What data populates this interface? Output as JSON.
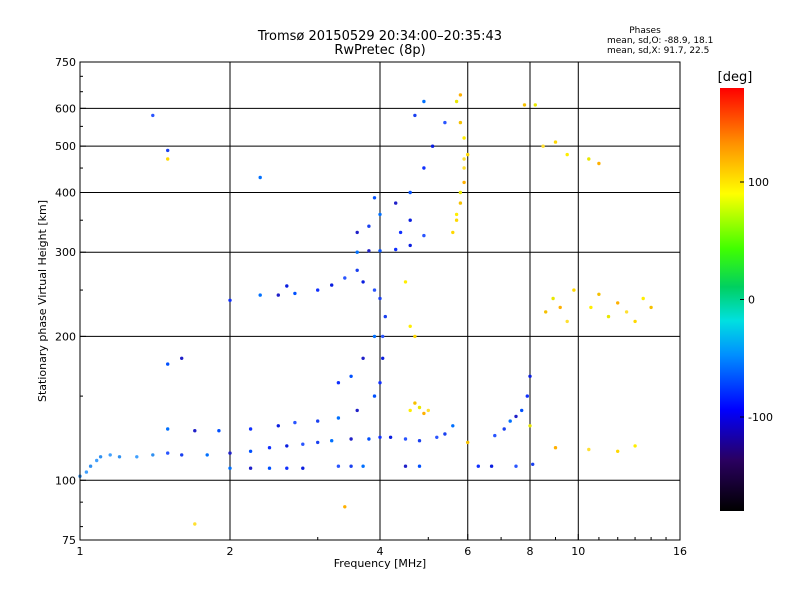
{
  "chart_data": {
    "type": "scatter",
    "title": "Tromsø 20150529 20:34:00–20:35:43",
    "subtitle": "RwPretec (8p)",
    "stats": {
      "heading": "Phases",
      "line1": "mean, sd,O: -88.9, 18.1",
      "line2": "mean, sd,X: 91.7, 22.5"
    },
    "xlabel": "Frequency [MHz]",
    "ylabel": "Stationary phase Virtual Height [km]",
    "x_scale": "log",
    "y_scale": "log",
    "xlim": [
      1,
      16
    ],
    "ylim": [
      75,
      750
    ],
    "xticks": [
      1,
      2,
      4,
      6,
      8,
      10,
      16
    ],
    "xtick_labels": [
      "1",
      "2",
      "4",
      "6",
      "8",
      "10",
      "16"
    ],
    "x_gridlines": [
      2,
      4,
      6,
      8,
      10
    ],
    "yticks": [
      75,
      100,
      200,
      300,
      400,
      500,
      600,
      750
    ],
    "ytick_labels": [
      "75",
      "100",
      "200",
      "300",
      "400",
      "500",
      "600",
      "750"
    ],
    "y_gridlines": [
      100,
      200,
      300,
      400,
      500,
      600
    ],
    "grid": true,
    "colorbar": {
      "label": "[deg]",
      "range": [
        -180,
        180
      ],
      "ticks": [
        100,
        0,
        -100
      ],
      "tick_labels": [
        "100",
        "0",
        "-100"
      ]
    },
    "series": [
      {
        "phase": "O",
        "color_note": "blue (~ -90 deg)",
        "points": [
          [
            1.0,
            102
          ],
          [
            1.03,
            104
          ],
          [
            1.05,
            107
          ],
          [
            1.08,
            110
          ],
          [
            1.1,
            112
          ],
          [
            1.15,
            113
          ],
          [
            1.2,
            112
          ],
          [
            1.3,
            112
          ],
          [
            1.4,
            113
          ],
          [
            1.5,
            114
          ],
          [
            1.6,
            113
          ],
          [
            1.8,
            113
          ],
          [
            2.0,
            114
          ],
          [
            2.2,
            115
          ],
          [
            2.4,
            117
          ],
          [
            2.6,
            118
          ],
          [
            2.8,
            119
          ],
          [
            3.0,
            120
          ],
          [
            3.2,
            121
          ],
          [
            3.5,
            122
          ],
          [
            3.8,
            122
          ],
          [
            4.0,
            123
          ],
          [
            4.2,
            123
          ],
          [
            4.5,
            122
          ],
          [
            4.8,
            121
          ],
          [
            2.0,
            106
          ],
          [
            2.2,
            106
          ],
          [
            2.4,
            106
          ],
          [
            2.6,
            106
          ],
          [
            2.8,
            106
          ],
          [
            3.3,
            107
          ],
          [
            3.5,
            107
          ],
          [
            3.7,
            107
          ],
          [
            4.5,
            107
          ],
          [
            4.8,
            107
          ],
          [
            6.3,
            107
          ],
          [
            6.7,
            107
          ],
          [
            7.5,
            107
          ],
          [
            8.1,
            108
          ],
          [
            1.5,
            128
          ],
          [
            1.7,
            127
          ],
          [
            1.9,
            127
          ],
          [
            2.2,
            128
          ],
          [
            2.5,
            130
          ],
          [
            2.7,
            132
          ],
          [
            3.0,
            133
          ],
          [
            3.3,
            135
          ],
          [
            3.6,
            140
          ],
          [
            3.9,
            150
          ],
          [
            4.0,
            160
          ],
          [
            4.05,
            180
          ],
          [
            4.05,
            200
          ],
          [
            4.1,
            220
          ],
          [
            3.9,
            200
          ],
          [
            3.7,
            180
          ],
          [
            3.5,
            165
          ],
          [
            3.3,
            160
          ],
          [
            3.7,
            260
          ],
          [
            3.9,
            250
          ],
          [
            4.0,
            240
          ],
          [
            2.3,
            244
          ],
          [
            2.5,
            244
          ],
          [
            2.7,
            246
          ],
          [
            3.0,
            250
          ],
          [
            3.2,
            256
          ],
          [
            3.4,
            265
          ],
          [
            3.6,
            275
          ],
          [
            3.6,
            300
          ],
          [
            3.8,
            302
          ],
          [
            4.0,
            302
          ],
          [
            4.3,
            304
          ],
          [
            4.6,
            310
          ],
          [
            4.9,
            325
          ],
          [
            3.8,
            340
          ],
          [
            4.0,
            360
          ],
          [
            4.3,
            380
          ],
          [
            4.6,
            400
          ],
          [
            4.9,
            450
          ],
          [
            5.1,
            500
          ],
          [
            5.4,
            560
          ],
          [
            4.7,
            580
          ],
          [
            4.9,
            620
          ],
          [
            3.6,
            330
          ],
          [
            3.9,
            390
          ],
          [
            4.4,
            330
          ],
          [
            4.6,
            350
          ],
          [
            6.8,
            124
          ],
          [
            7.1,
            128
          ],
          [
            7.3,
            133
          ],
          [
            7.5,
            136
          ],
          [
            7.7,
            140
          ],
          [
            7.9,
            150
          ],
          [
            8.0,
            165
          ],
          [
            5.2,
            123
          ],
          [
            5.4,
            125
          ],
          [
            5.6,
            130
          ],
          [
            1.6,
            180
          ],
          [
            1.5,
            175
          ],
          [
            2.0,
            238
          ],
          [
            2.6,
            255
          ],
          [
            1.4,
            580
          ],
          [
            1.5,
            490
          ],
          [
            2.3,
            430
          ]
        ]
      },
      {
        "phase": "X",
        "color_note": "yellow/orange (~ +90 deg)",
        "points": [
          [
            5.6,
            330
          ],
          [
            5.7,
            360
          ],
          [
            5.8,
            380
          ],
          [
            5.8,
            400
          ],
          [
            5.9,
            420
          ],
          [
            5.9,
            450
          ],
          [
            6.0,
            480
          ],
          [
            5.9,
            520
          ],
          [
            5.8,
            560
          ],
          [
            5.7,
            620
          ],
          [
            5.8,
            640
          ],
          [
            5.9,
            470
          ],
          [
            5.7,
            350
          ],
          [
            4.6,
            140
          ],
          [
            4.7,
            145
          ],
          [
            4.8,
            142
          ],
          [
            4.9,
            138
          ],
          [
            5.0,
            140
          ],
          [
            4.7,
            200
          ],
          [
            4.6,
            210
          ],
          [
            8.6,
            225
          ],
          [
            8.9,
            240
          ],
          [
            9.2,
            230
          ],
          [
            9.5,
            215
          ],
          [
            9.8,
            250
          ],
          [
            10.6,
            230
          ],
          [
            11.0,
            245
          ],
          [
            11.5,
            220
          ],
          [
            12.0,
            235
          ],
          [
            12.5,
            225
          ],
          [
            13.0,
            215
          ],
          [
            13.5,
            240
          ],
          [
            14.0,
            230
          ],
          [
            10.5,
            470
          ],
          [
            11.0,
            460
          ],
          [
            8.5,
            500
          ],
          [
            9.0,
            510
          ],
          [
            9.5,
            480
          ],
          [
            7.8,
            610
          ],
          [
            8.2,
            610
          ],
          [
            9.0,
            117
          ],
          [
            10.5,
            116
          ],
          [
            12.0,
            115
          ],
          [
            13.0,
            118
          ],
          [
            6.0,
            120
          ],
          [
            8.0,
            130
          ],
          [
            3.4,
            88
          ],
          [
            1.7,
            81
          ],
          [
            1.5,
            470
          ],
          [
            4.5,
            260
          ]
        ]
      }
    ]
  }
}
